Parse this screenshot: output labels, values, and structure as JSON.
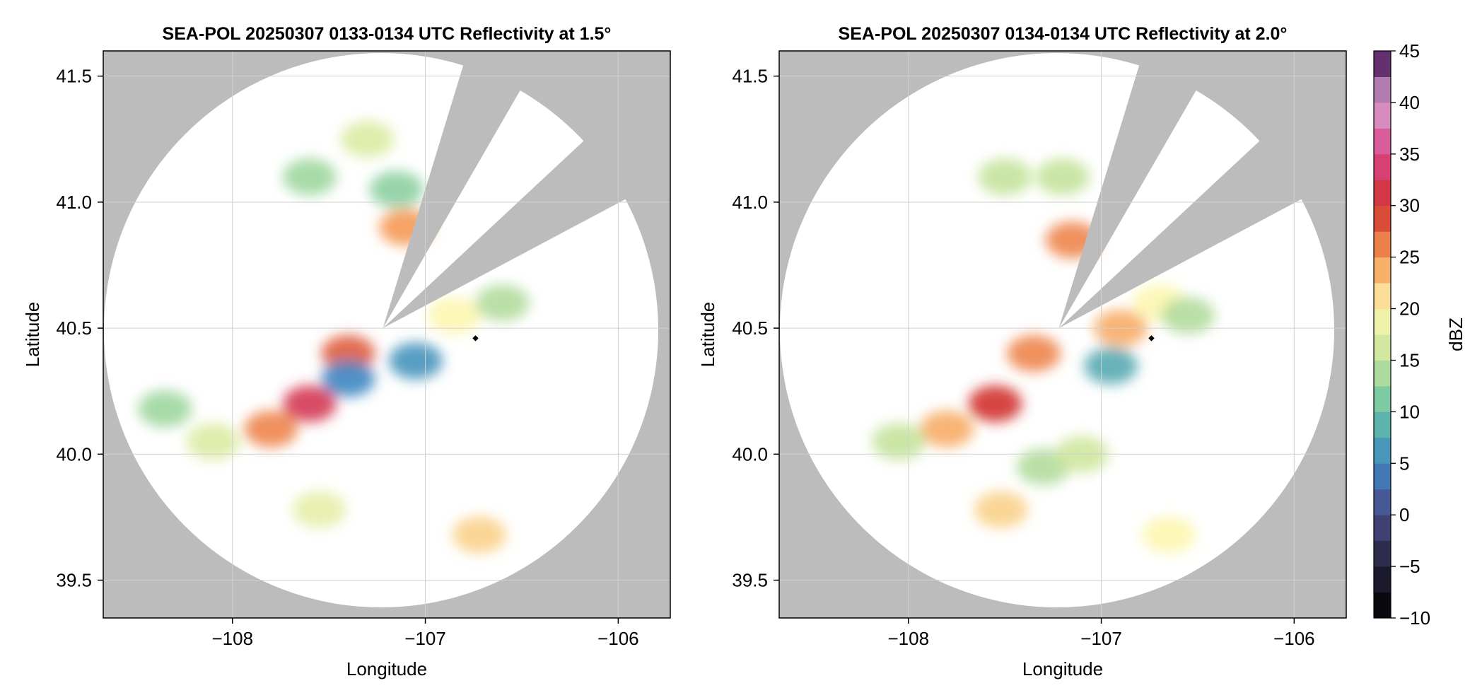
{
  "colors": {
    "no_data": "#bcbcbc",
    "in_range_background": "#ffffff",
    "grid": "#d0d0d0",
    "axis": "#000000",
    "site_marker": "#000000"
  },
  "chart_data": [
    {
      "type": "heatmap",
      "title": "SEA-POL 20250307 0133-0134 UTC Reflectivity at 1.5°",
      "xlabel": "Longitude",
      "ylabel": "Latitude",
      "xlim": [
        -108.67,
        -105.73
      ],
      "ylim": [
        39.35,
        41.6
      ],
      "xticks": [
        -108,
        -107,
        -106
      ],
      "xtick_labels": [
        "−108",
        "−107",
        "−106"
      ],
      "yticks": [
        39.5,
        40.0,
        40.5,
        41.0,
        41.5
      ],
      "ytick_labels": [
        "39.5",
        "40.0",
        "40.5",
        "41.0",
        "41.5"
      ],
      "grid": true,
      "radar_site": {
        "lon": -107.22,
        "lat": 40.5
      },
      "blocked_sectors_deg": [
        [
          17,
          30
        ],
        [
          47,
          62
        ]
      ],
      "marker_point": {
        "lon": -106.74,
        "lat": 40.46
      },
      "echo_regions": [
        {
          "lon": -107.6,
          "lat": 40.2,
          "dbz": 32
        },
        {
          "lon": -107.8,
          "lat": 40.1,
          "dbz": 26
        },
        {
          "lon": -108.1,
          "lat": 40.05,
          "dbz": 17
        },
        {
          "lon": -108.35,
          "lat": 40.18,
          "dbz": 13
        },
        {
          "lon": -107.4,
          "lat": 40.4,
          "dbz": 28
        },
        {
          "lon": -107.1,
          "lat": 40.9,
          "dbz": 25
        },
        {
          "lon": -107.15,
          "lat": 41.05,
          "dbz": 12
        },
        {
          "lon": -106.85,
          "lat": 40.55,
          "dbz": 20
        },
        {
          "lon": -106.6,
          "lat": 40.6,
          "dbz": 14
        },
        {
          "lon": -107.3,
          "lat": 41.25,
          "dbz": 17
        },
        {
          "lon": -107.6,
          "lat": 41.1,
          "dbz": 13
        },
        {
          "lon": -106.72,
          "lat": 39.68,
          "dbz": 22
        },
        {
          "lon": -107.55,
          "lat": 39.78,
          "dbz": 18
        },
        {
          "lon": -107.4,
          "lat": 40.3,
          "dbz": 5
        },
        {
          "lon": -107.05,
          "lat": 40.37,
          "dbz": 6
        }
      ]
    },
    {
      "type": "heatmap",
      "title": "SEA-POL 20250307 0134-0134 UTC Reflectivity at 2.0°",
      "xlabel": "Longitude",
      "ylabel": "Latitude",
      "xlim": [
        -108.67,
        -105.73
      ],
      "ylim": [
        39.35,
        41.6
      ],
      "xticks": [
        -108,
        -107,
        -106
      ],
      "xtick_labels": [
        "−108",
        "−107",
        "−106"
      ],
      "yticks": [
        39.5,
        40.0,
        40.5,
        41.0,
        41.5
      ],
      "ytick_labels": [
        "39.5",
        "40.0",
        "40.5",
        "41.0",
        "41.5"
      ],
      "grid": true,
      "radar_site": {
        "lon": -107.22,
        "lat": 40.5
      },
      "blocked_sectors_deg": [
        [
          17,
          30
        ],
        [
          47,
          62
        ]
      ],
      "marker_point": {
        "lon": -106.74,
        "lat": 40.46
      },
      "echo_regions": [
        {
          "lon": -107.55,
          "lat": 40.2,
          "dbz": 30
        },
        {
          "lon": -107.8,
          "lat": 40.1,
          "dbz": 24
        },
        {
          "lon": -108.05,
          "lat": 40.05,
          "dbz": 15
        },
        {
          "lon": -107.35,
          "lat": 40.4,
          "dbz": 26
        },
        {
          "lon": -107.15,
          "lat": 40.85,
          "dbz": 26
        },
        {
          "lon": -107.2,
          "lat": 41.1,
          "dbz": 15
        },
        {
          "lon": -107.5,
          "lat": 41.1,
          "dbz": 15
        },
        {
          "lon": -106.9,
          "lat": 40.5,
          "dbz": 24
        },
        {
          "lon": -106.7,
          "lat": 40.6,
          "dbz": 20
        },
        {
          "lon": -106.55,
          "lat": 40.55,
          "dbz": 14
        },
        {
          "lon": -107.3,
          "lat": 39.95,
          "dbz": 14
        },
        {
          "lon": -107.1,
          "lat": 40.0,
          "dbz": 16
        },
        {
          "lon": -106.65,
          "lat": 39.68,
          "dbz": 20
        },
        {
          "lon": -107.52,
          "lat": 39.78,
          "dbz": 22
        },
        {
          "lon": -106.95,
          "lat": 40.35,
          "dbz": 8
        }
      ]
    }
  ],
  "colorbar": {
    "label": "dBZ",
    "min": -10,
    "max": 45,
    "step": 2.5,
    "tick_values": [
      -10,
      -5,
      0,
      5,
      10,
      15,
      20,
      25,
      30,
      35,
      40,
      45
    ],
    "tick_labels": [
      "−10",
      "−5",
      "0",
      "5",
      "10",
      "15",
      "20",
      "25",
      "30",
      "35",
      "40",
      "45"
    ],
    "stops": [
      {
        "v": -10,
        "c": "#000000"
      },
      {
        "v": -5,
        "c": "#23223a"
      },
      {
        "v": 0,
        "c": "#4a4a86"
      },
      {
        "v": 5,
        "c": "#3f87c2"
      },
      {
        "v": 10,
        "c": "#66c2a5"
      },
      {
        "v": 15,
        "c": "#c4e39b"
      },
      {
        "v": 20,
        "c": "#fdf6b0"
      },
      {
        "v": 25,
        "c": "#f59a54"
      },
      {
        "v": 30,
        "c": "#d0322f"
      },
      {
        "v": 35,
        "c": "#d9448a"
      },
      {
        "v": 40,
        "c": "#d7a3cf"
      },
      {
        "v": 45,
        "c": "#3f0a4f"
      }
    ]
  }
}
